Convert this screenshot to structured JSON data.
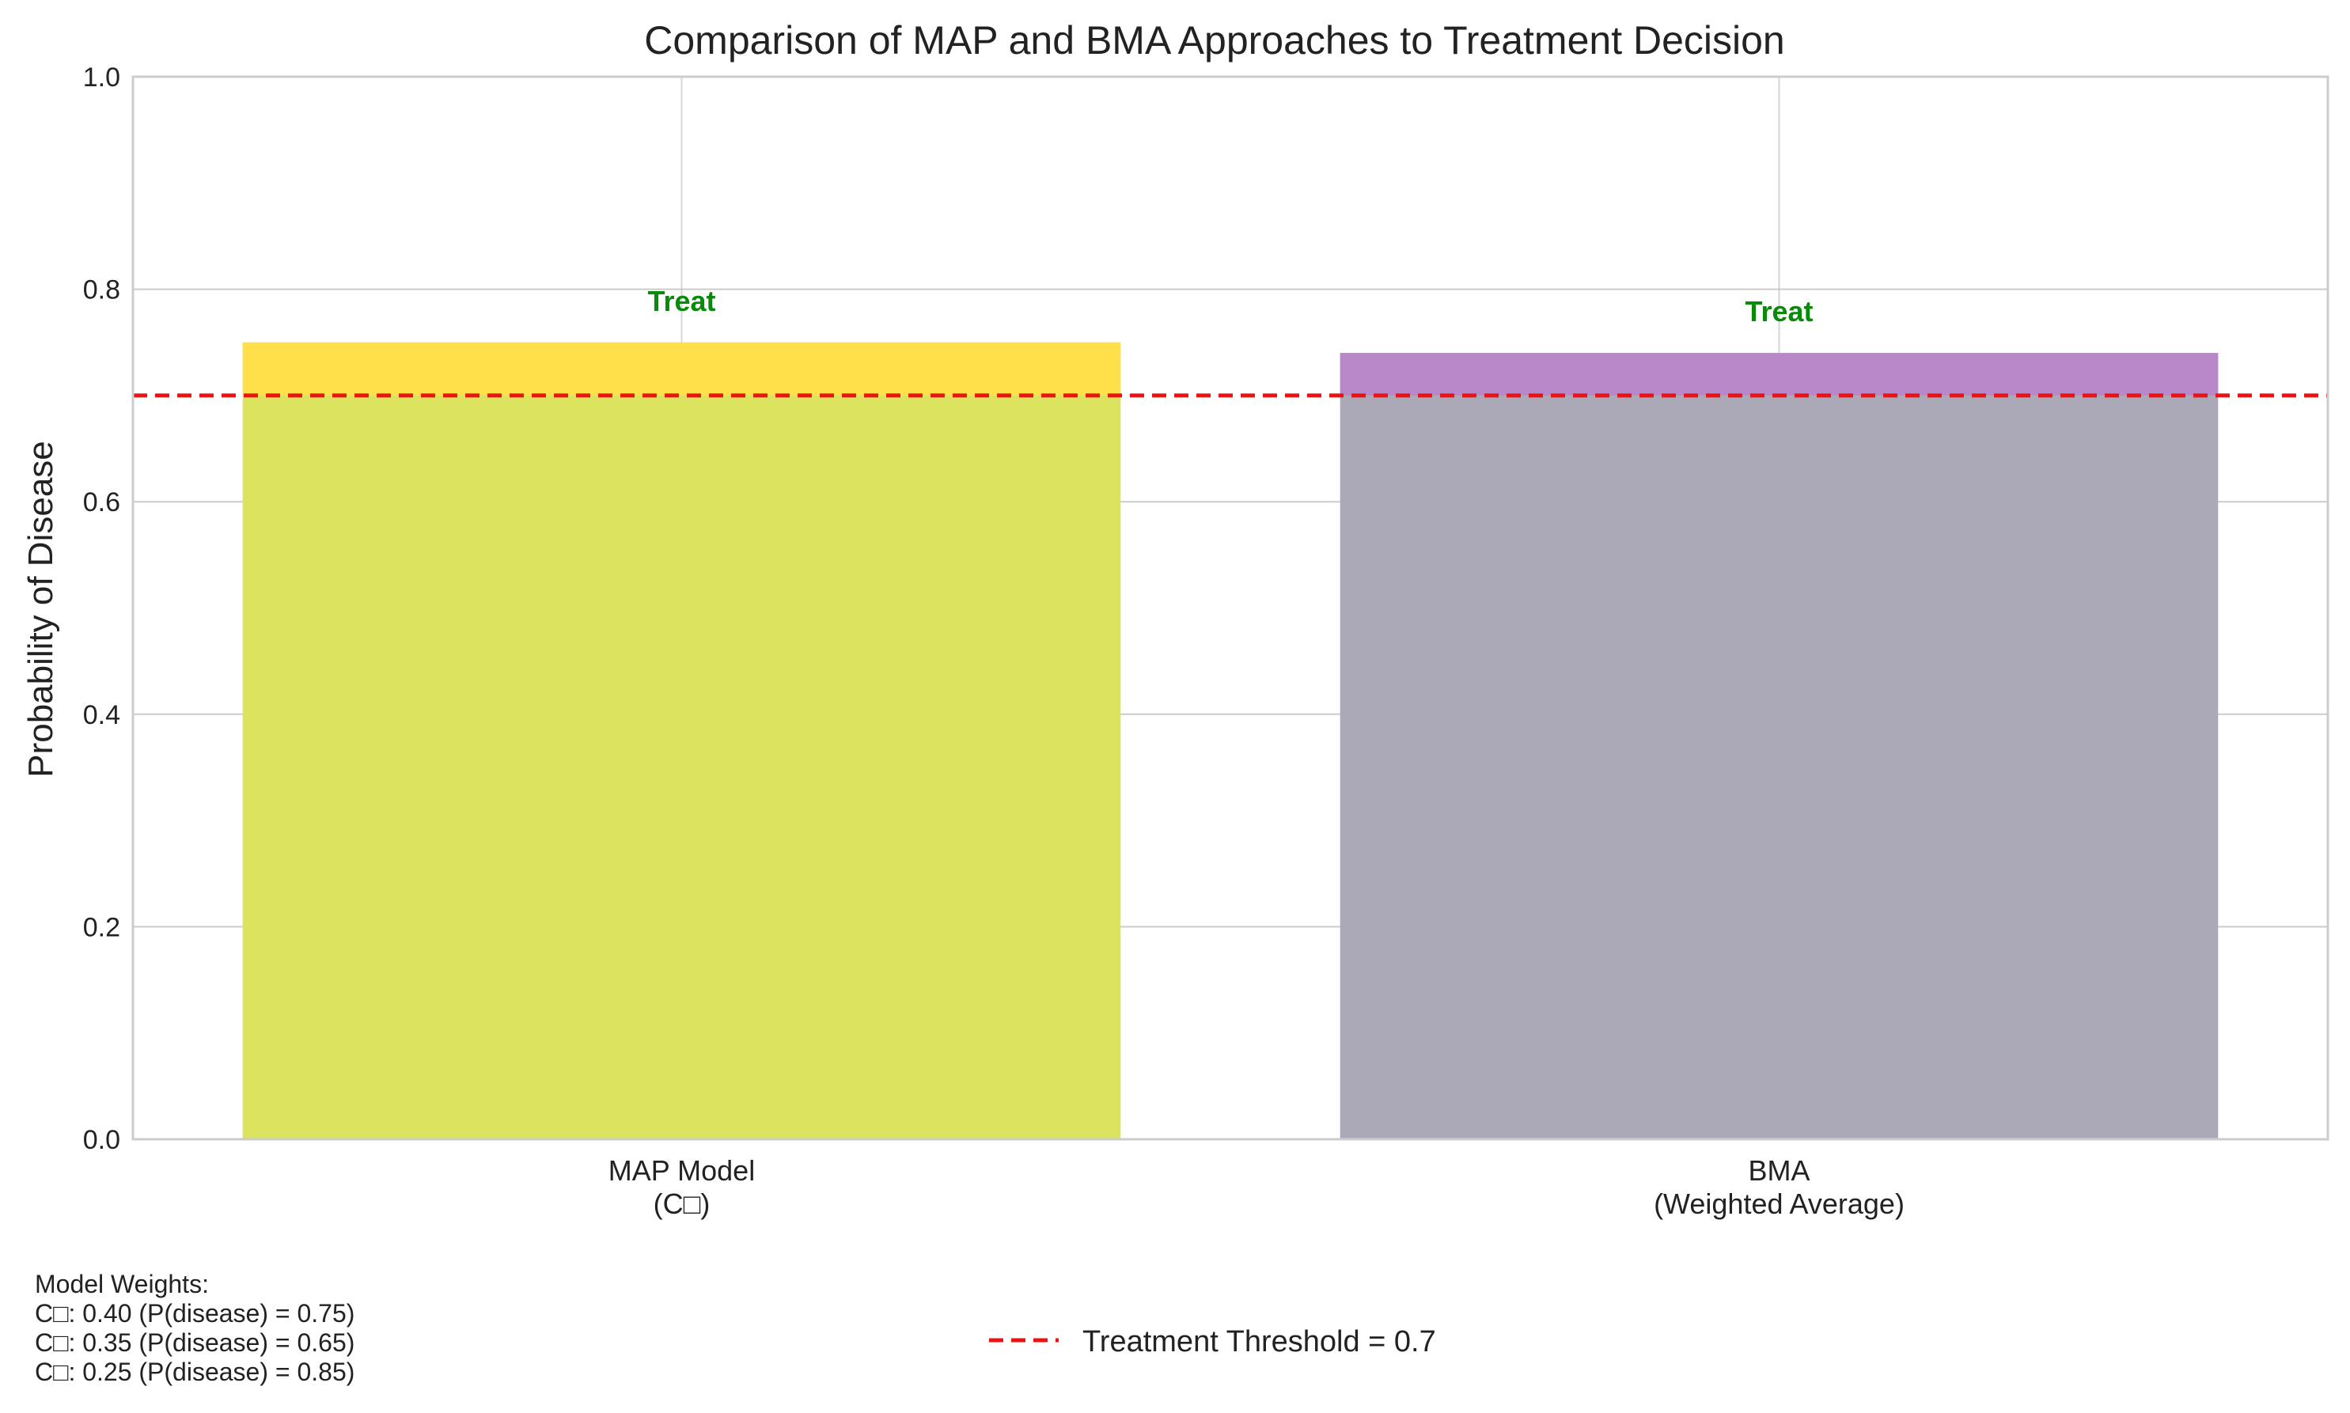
{
  "chart_data": {
    "type": "bar",
    "title": "Comparison of MAP and BMA Approaches to Treatment Decision",
    "xlabel": "",
    "ylabel": "Probability of Disease",
    "ylim": [
      0,
      1
    ],
    "yticks": [
      0.0,
      0.2,
      0.4,
      0.6,
      0.8,
      1.0
    ],
    "ytick_labels": [
      "0.0",
      "0.2",
      "0.4",
      "0.6",
      "0.8",
      "1.0"
    ],
    "categories": [
      {
        "line1": "MAP Model",
        "line2": "(C□)"
      },
      {
        "line1": "BMA",
        "line2": "(Weighted Average)"
      }
    ],
    "values": [
      0.75,
      0.74
    ],
    "bar_colors": [
      "#dce35e",
      "#aba8b8"
    ],
    "bar_top_colors": [
      "#ffe04b",
      "#b888c9"
    ],
    "data_labels": [
      "Treat",
      "Treat"
    ],
    "data_label_color": "#0a8a0a",
    "threshold": {
      "value": 0.7,
      "label": "Treatment Threshold = 0.7",
      "color": "#ee1111"
    },
    "grid": true,
    "legend_position": "bottom-center",
    "model_weights_box": {
      "heading": "Model Weights:",
      "lines": [
        "C□: 0.40 (P(disease) = 0.75)",
        "C□: 0.35 (P(disease) = 0.65)",
        "C□: 0.25 (P(disease) = 0.85)"
      ]
    }
  }
}
